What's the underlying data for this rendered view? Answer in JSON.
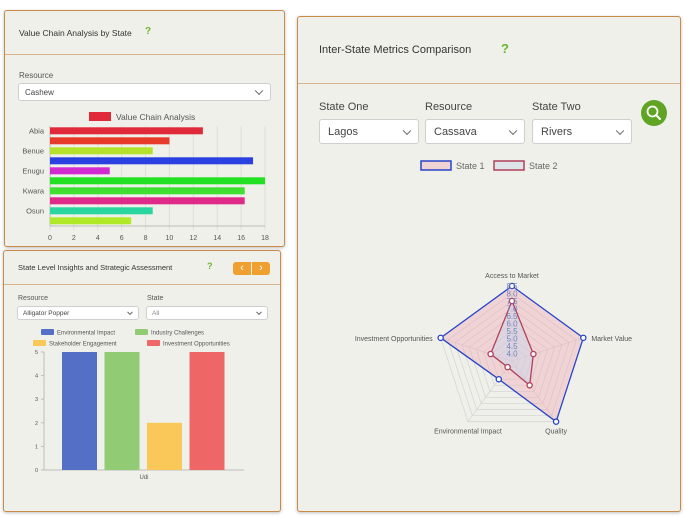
{
  "card1": {
    "title": "Value Chain Analysis by State",
    "help": "?",
    "resource_label": "Resource",
    "resource_value": "Cashew"
  },
  "card2": {
    "title": "State Level Insights and Strategic Assessment",
    "help": "?",
    "prev": "‹",
    "next": "›",
    "resource_label": "Resource",
    "resource_value": "Alligator Popper",
    "state_label": "State",
    "state_value": "All"
  },
  "card3": {
    "title": "Inter-State Metrics Comparison",
    "help": "?",
    "state_one_label": "State One",
    "state_one_value": "Lagos",
    "resource_label": "Resource",
    "resource_value": "Cassava",
    "state_two_label": "State Two",
    "state_two_value": "Rivers"
  },
  "colors": {
    "accent_green": "#6bb52f",
    "button_orange": "#f0a030",
    "card_border": "#c98a4a"
  },
  "chart_data": [
    {
      "type": "bar",
      "orientation": "horizontal",
      "legend": [
        "Value Chain Analysis"
      ],
      "categories": [
        "Abia",
        "Benue",
        "Enugu",
        "Kwara",
        "Osun"
      ],
      "bars": [
        {
          "value": 12.8,
          "color": "#e02a3a"
        },
        {
          "value": 10.0,
          "color": "#e83a2a"
        },
        {
          "value": 8.6,
          "color": "#b4e22a"
        },
        {
          "value": 17.0,
          "color": "#2a40e0"
        },
        {
          "value": 5.0,
          "color": "#d02ad0"
        },
        {
          "value": 18.0,
          "color": "#22e022"
        },
        {
          "value": 16.3,
          "color": "#40e030"
        },
        {
          "value": 16.3,
          "color": "#e02a8a"
        },
        {
          "value": 8.6,
          "color": "#2ad6a0"
        },
        {
          "value": 6.8,
          "color": "#b0e82a"
        }
      ],
      "xticks": [
        "0",
        "2",
        "4",
        "6",
        "8",
        "10",
        "12",
        "14",
        "16",
        "18"
      ],
      "xlim": [
        0,
        18
      ]
    },
    {
      "type": "bar",
      "categories": [
        "Udi"
      ],
      "series": [
        {
          "name": "Environmental Impact",
          "value": 5,
          "color": "#5470c6"
        },
        {
          "name": "Industry Challenges",
          "value": 5,
          "color": "#91cc75"
        },
        {
          "name": "Stakeholder Engagement",
          "value": 2,
          "color": "#fac858"
        },
        {
          "name": "Investment Opportunities",
          "value": 5,
          "color": "#ee6666"
        }
      ],
      "yticks": [
        "0",
        "1",
        "2",
        "3",
        "4",
        "5"
      ],
      "ylim": [
        0,
        5
      ]
    },
    {
      "type": "radar",
      "axes": [
        "Access to Market",
        "Market Value",
        "Quality",
        "Environmental Impact",
        "Investment Opportunities"
      ],
      "rticks": [
        "4.0",
        "4.5",
        "5.0",
        "5.5",
        "6.0",
        "6.5",
        "7.0",
        "7.5",
        "8.0",
        "8.5"
      ],
      "rlim": [
        3.5,
        8.5
      ],
      "series": [
        {
          "name": "State 1",
          "values": [
            8.5,
            8.5,
            8.5,
            5.0,
            8.5
          ],
          "stroke": "#2845c8",
          "fill": "rgba(240,160,175,0.35)"
        },
        {
          "name": "State 2",
          "values": [
            7.5,
            5.0,
            5.5,
            4.0,
            5.0
          ],
          "stroke": "#b0405a",
          "fill": "rgba(200,215,235,0.45)"
        }
      ]
    }
  ]
}
